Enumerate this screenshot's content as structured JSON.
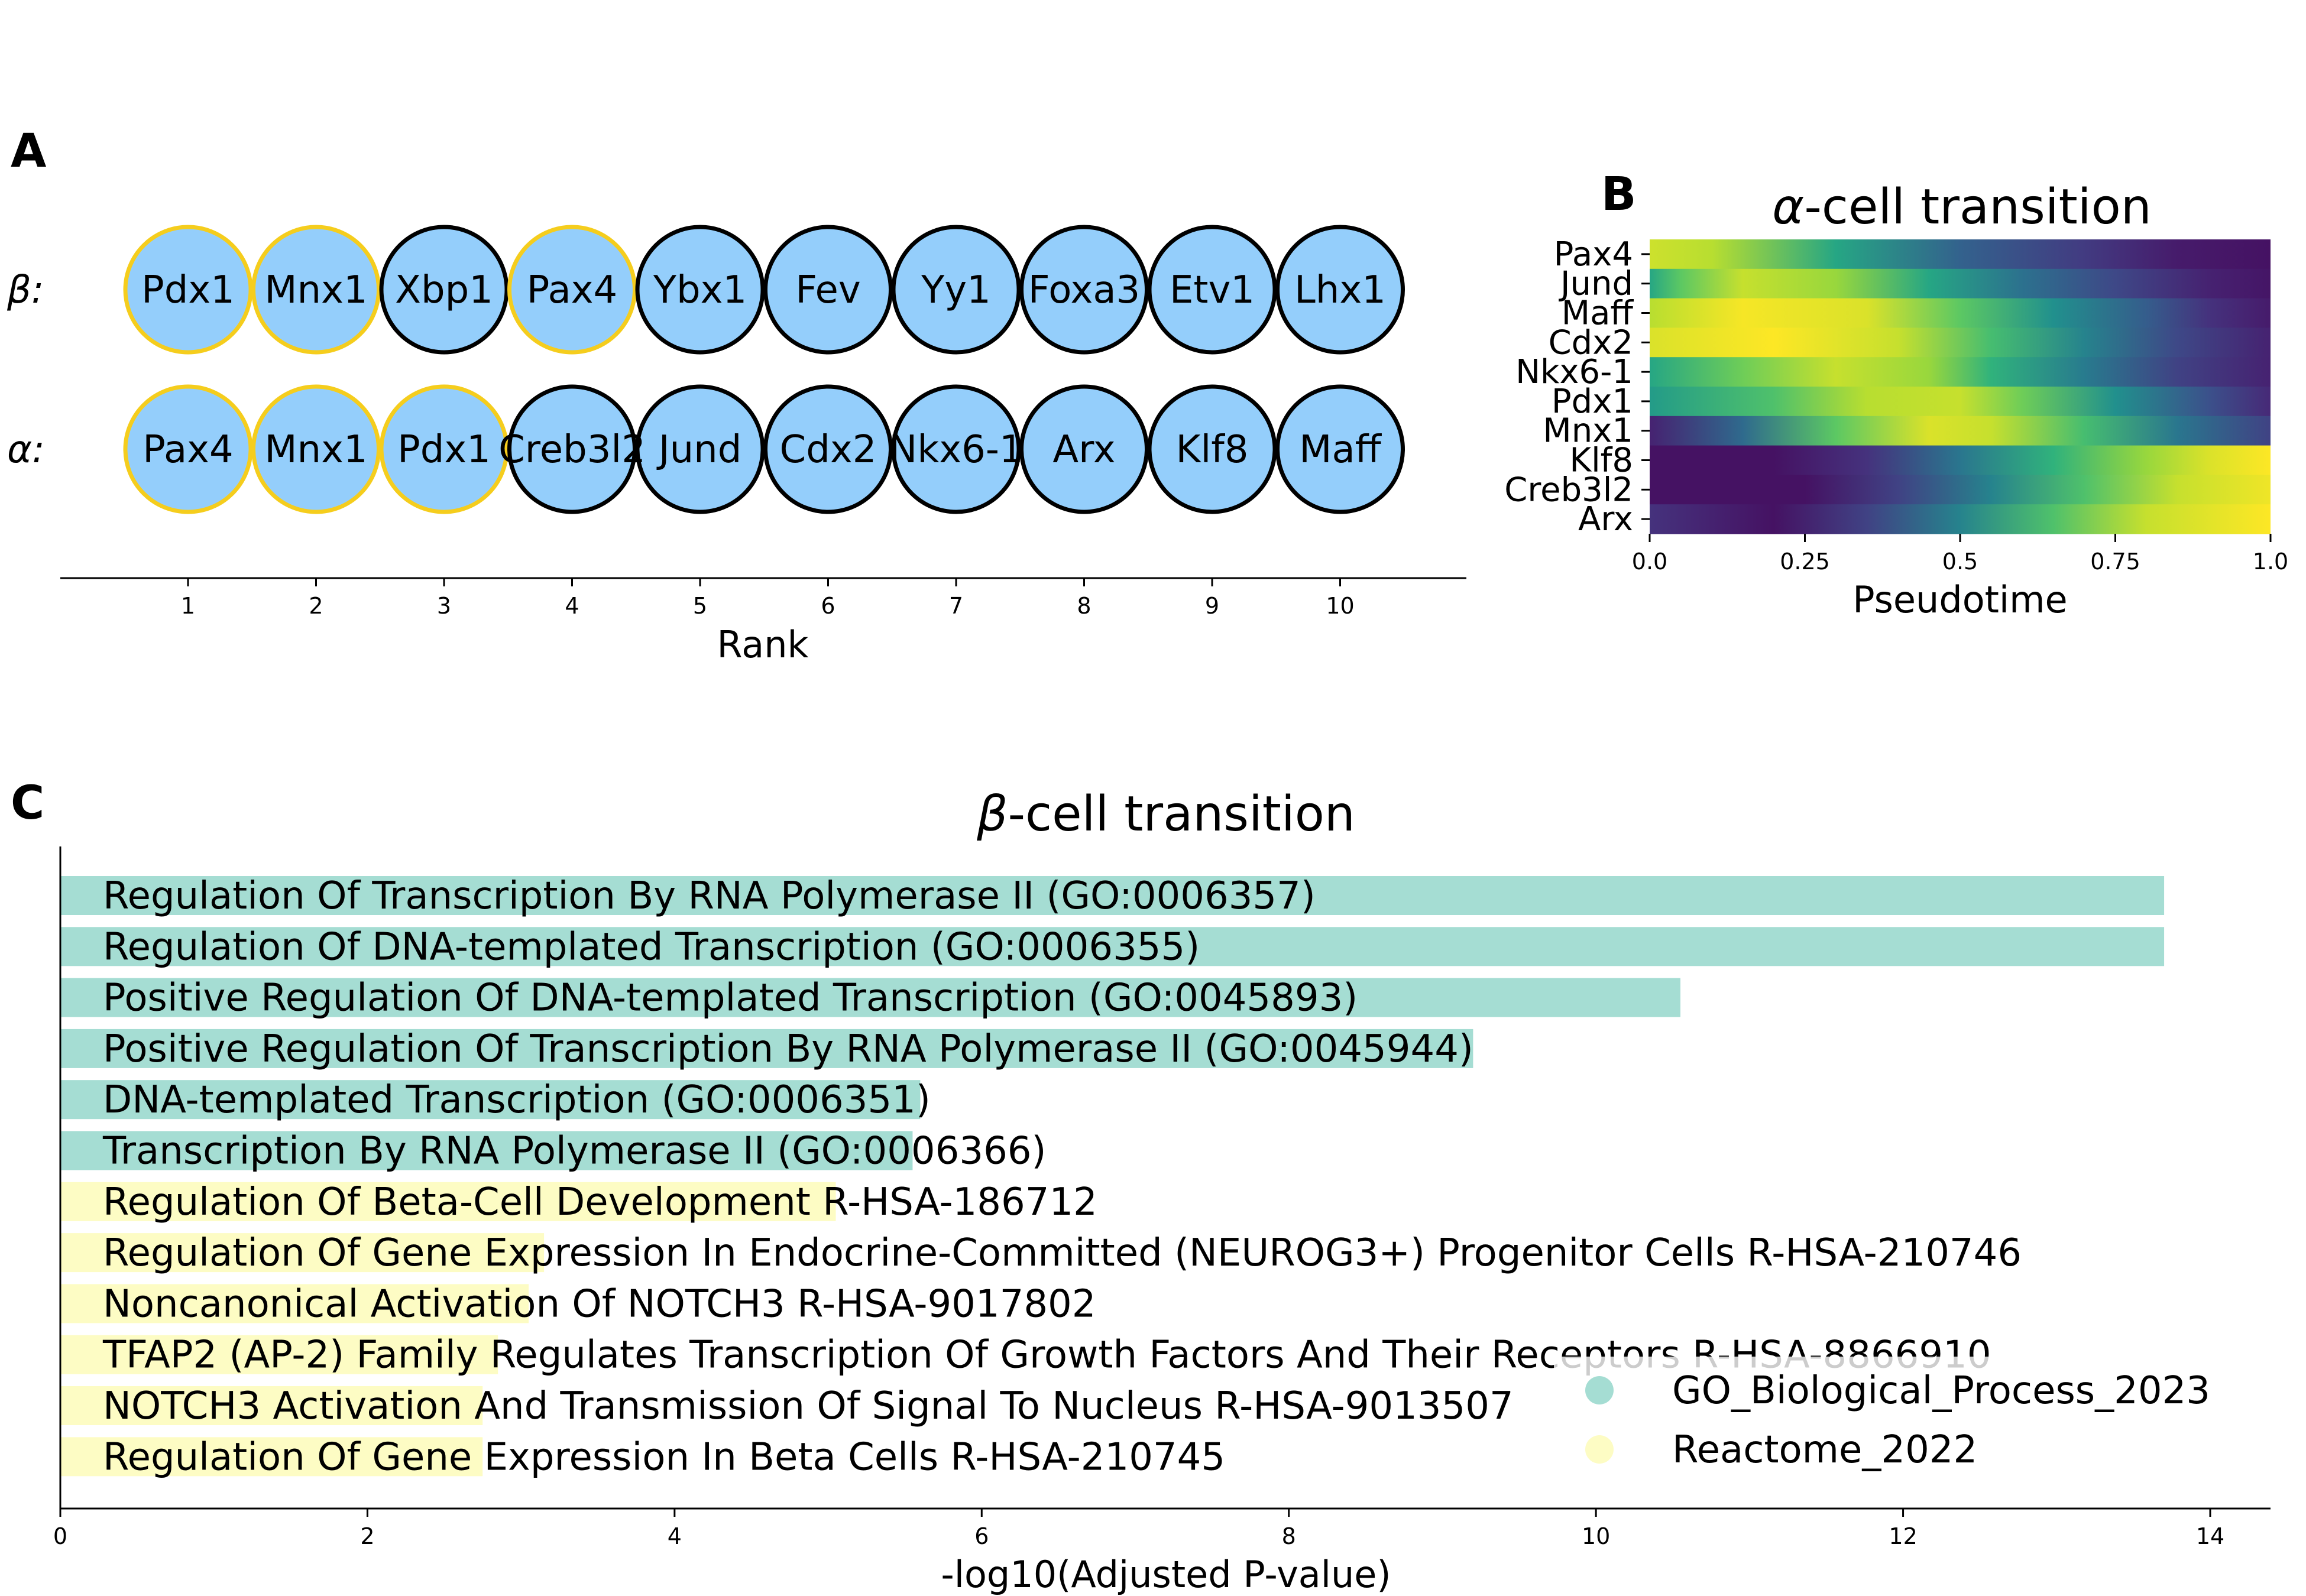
{
  "panels": {
    "a": "A",
    "b": "B",
    "c": "C"
  },
  "chart_data": [
    {
      "type": "table",
      "row_labels": [
        "β:",
        "α:"
      ],
      "rows": [
        {
          "genes": [
            "Pdx1",
            "Mnx1",
            "Xbp1",
            "Pax4",
            "Ybx1",
            "Fev",
            "Yy1",
            "Foxa3",
            "Etv1",
            "Lhx1"
          ],
          "highlighted": [
            true,
            true,
            false,
            true,
            false,
            false,
            false,
            false,
            false,
            false
          ]
        },
        {
          "genes": [
            "Pax4",
            "Mnx1",
            "Pdx1",
            "Creb3l2",
            "Jund",
            "Cdx2",
            "Nkx6-1",
            "Arx",
            "Klf8",
            "Maff"
          ],
          "highlighted": [
            true,
            true,
            true,
            false,
            false,
            false,
            false,
            false,
            false,
            false
          ]
        }
      ],
      "x_ticks": [
        "1",
        "2",
        "3",
        "4",
        "5",
        "6",
        "7",
        "8",
        "9",
        "10"
      ],
      "xlabel": "Rank",
      "colors": {
        "fill": "#94cefb",
        "highlight_edge": "#f5cd1d",
        "edge": "#000000"
      }
    },
    {
      "type": "heatmap",
      "title_greek": "α",
      "title_rest": "-cell transition",
      "genes": [
        "Pax4",
        "Jund",
        "Maff",
        "Cdx2",
        "Nkx6-1",
        "Pdx1",
        "Mnx1",
        "Klf8",
        "Creb3l2",
        "Arx"
      ],
      "x_ticks": [
        "0.0",
        "0.25",
        "0.5",
        "0.75",
        "1.0"
      ],
      "xlabel": "Pseudotime",
      "xlim": [
        0,
        1
      ],
      "colormap": "viridis",
      "profiles": [
        [
          [
            0,
            0.93
          ],
          [
            0.1,
            0.9
          ],
          [
            0.3,
            0.6
          ],
          [
            0.5,
            0.32
          ],
          [
            0.7,
            0.18
          ],
          [
            0.85,
            0.08
          ],
          [
            1,
            0.05
          ]
        ],
        [
          [
            0,
            0.6
          ],
          [
            0.05,
            0.75
          ],
          [
            0.15,
            0.92
          ],
          [
            0.3,
            0.85
          ],
          [
            0.45,
            0.6
          ],
          [
            0.6,
            0.38
          ],
          [
            0.75,
            0.22
          ],
          [
            0.9,
            0.1
          ],
          [
            1,
            0.06
          ]
        ],
        [
          [
            0,
            0.9
          ],
          [
            0.15,
            0.99
          ],
          [
            0.35,
            0.95
          ],
          [
            0.5,
            0.75
          ],
          [
            0.65,
            0.5
          ],
          [
            0.8,
            0.3
          ],
          [
            0.9,
            0.15
          ],
          [
            1,
            0.08
          ]
        ],
        [
          [
            0,
            0.95
          ],
          [
            0.2,
            1
          ],
          [
            0.4,
            0.92
          ],
          [
            0.55,
            0.7
          ],
          [
            0.7,
            0.45
          ],
          [
            0.85,
            0.22
          ],
          [
            1,
            0.1
          ]
        ],
        [
          [
            0,
            0.6
          ],
          [
            0.15,
            0.78
          ],
          [
            0.3,
            0.92
          ],
          [
            0.45,
            0.85
          ],
          [
            0.55,
            0.65
          ],
          [
            0.7,
            0.42
          ],
          [
            0.85,
            0.2
          ],
          [
            1,
            0.1
          ]
        ],
        [
          [
            0,
            0.55
          ],
          [
            0.2,
            0.72
          ],
          [
            0.35,
            0.9
          ],
          [
            0.5,
            0.92
          ],
          [
            0.6,
            0.78
          ],
          [
            0.75,
            0.5
          ],
          [
            0.9,
            0.25
          ],
          [
            1,
            0.12
          ]
        ],
        [
          [
            0,
            0.1
          ],
          [
            0.15,
            0.35
          ],
          [
            0.3,
            0.75
          ],
          [
            0.45,
            0.95
          ],
          [
            0.55,
            0.92
          ],
          [
            0.7,
            0.7
          ],
          [
            0.85,
            0.4
          ],
          [
            1,
            0.2
          ]
        ],
        [
          [
            0,
            0.05
          ],
          [
            0.2,
            0.05
          ],
          [
            0.35,
            0.15
          ],
          [
            0.5,
            0.4
          ],
          [
            0.65,
            0.65
          ],
          [
            0.8,
            0.85
          ],
          [
            0.9,
            0.95
          ],
          [
            1,
            1
          ]
        ],
        [
          [
            0,
            0.05
          ],
          [
            0.25,
            0.05
          ],
          [
            0.4,
            0.2
          ],
          [
            0.55,
            0.45
          ],
          [
            0.7,
            0.72
          ],
          [
            0.85,
            0.92
          ],
          [
            1,
            0.98
          ]
        ],
        [
          [
            0,
            0.15
          ],
          [
            0.2,
            0.05
          ],
          [
            0.35,
            0.2
          ],
          [
            0.5,
            0.45
          ],
          [
            0.65,
            0.72
          ],
          [
            0.8,
            0.92
          ],
          [
            1,
            1
          ]
        ]
      ]
    },
    {
      "type": "bar",
      "orientation": "horizontal",
      "title_greek": "β",
      "title_rest": "-cell transition",
      "xlabel": "-log10(Adjusted P-value)",
      "xlim": [
        0,
        14.5
      ],
      "x_ticks": [
        0,
        2,
        4,
        6,
        8,
        10,
        12,
        14
      ],
      "legend_placement": "lower-right",
      "series": [
        {
          "name": "GO_Biological_Process_2023",
          "color": "#a5ddd3"
        },
        {
          "name": "Reactome_2022",
          "color": "#fdfcc4"
        }
      ],
      "bars": [
        {
          "label": "Regulation Of Transcription By RNA Polymerase II (GO:0006357)",
          "value": 13.7,
          "series": 0
        },
        {
          "label": "Regulation Of DNA-templated Transcription (GO:0006355)",
          "value": 13.7,
          "series": 0
        },
        {
          "label": "Positive Regulation Of DNA-templated Transcription (GO:0045893)",
          "value": 10.55,
          "series": 0
        },
        {
          "label": "Positive Regulation Of Transcription By RNA Polymerase II (GO:0045944)",
          "value": 9.2,
          "series": 0
        },
        {
          "label": "DNA-templated Transcription (GO:0006351)",
          "value": 5.6,
          "series": 0
        },
        {
          "label": "Transcription By RNA Polymerase II (GO:0006366)",
          "value": 5.55,
          "series": 0
        },
        {
          "label": "Regulation Of Beta-Cell Development R-HSA-186712",
          "value": 5.05,
          "series": 1
        },
        {
          "label": "Regulation Of Gene Expression In Endocrine-Committed (NEUROG3+) Progenitor Cells R-HSA-210746",
          "value": 3.15,
          "series": 1
        },
        {
          "label": "Noncanonical Activation Of NOTCH3 R-HSA-9017802",
          "value": 3.05,
          "series": 1
        },
        {
          "label": "TFAP2 (AP-2) Family Regulates Transcription Of Growth Factors And Their Receptors R-HSA-8866910",
          "value": 2.85,
          "series": 1
        },
        {
          "label": "NOTCH3 Activation And Transmission Of Signal To Nucleus R-HSA-9013507",
          "value": 2.75,
          "series": 1
        },
        {
          "label": "Regulation Of Gene Expression In Beta Cells R-HSA-210745",
          "value": 2.75,
          "series": 1
        }
      ]
    }
  ]
}
